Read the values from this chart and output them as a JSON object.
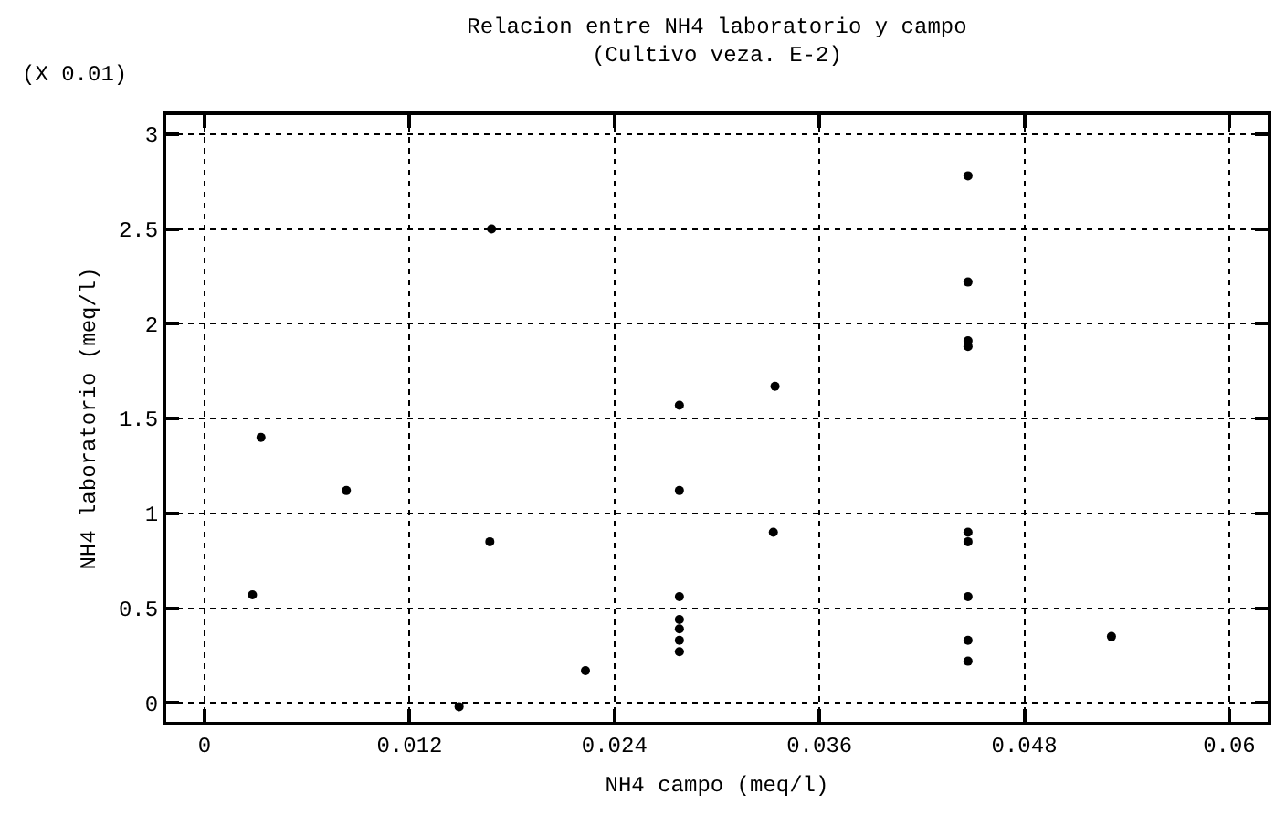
{
  "chart_data": {
    "type": "scatter",
    "title": "Relacion entre NH4 laboratorio y campo\n(Cultivo veza. E-2)",
    "xlabel": "NH4 campo (meq/l)",
    "ylabel": "NH4 laboratorio (meq/l)",
    "annotations": [
      "(X 0.01)"
    ],
    "x": [
      0.0168,
      0.0033,
      0.0278,
      0.0083,
      0.0278,
      0.0447,
      0.0447,
      0.0447,
      0.0447,
      0.0334,
      0.0028,
      0.0167,
      0.0223,
      0.0278,
      0.0278,
      0.0278,
      0.0278,
      0.0278,
      0.0149,
      0.0333,
      0.0447,
      0.0447,
      0.0447,
      0.0447,
      0.0447,
      0.0531
    ],
    "values": [
      2.5,
      1.4,
      1.57,
      1.12,
      1.12,
      2.78,
      2.22,
      1.91,
      1.88,
      1.67,
      0.57,
      0.85,
      0.17,
      0.56,
      0.44,
      0.39,
      0.33,
      0.27,
      -0.02,
      0.9,
      0.9,
      0.85,
      0.56,
      0.33,
      0.22,
      0.35
    ],
    "color": "#000000",
    "marker": "circle",
    "xlim": [
      -0.00225,
      0.06225
    ],
    "xticks": [
      0,
      0.012,
      0.024,
      0.036,
      0.048,
      0.06
    ],
    "ylim": [
      -0.1,
      3.1
    ],
    "yticks": [
      0,
      0.5,
      1,
      1.5,
      2,
      2.5,
      3
    ],
    "grid": true,
    "legend": false
  }
}
